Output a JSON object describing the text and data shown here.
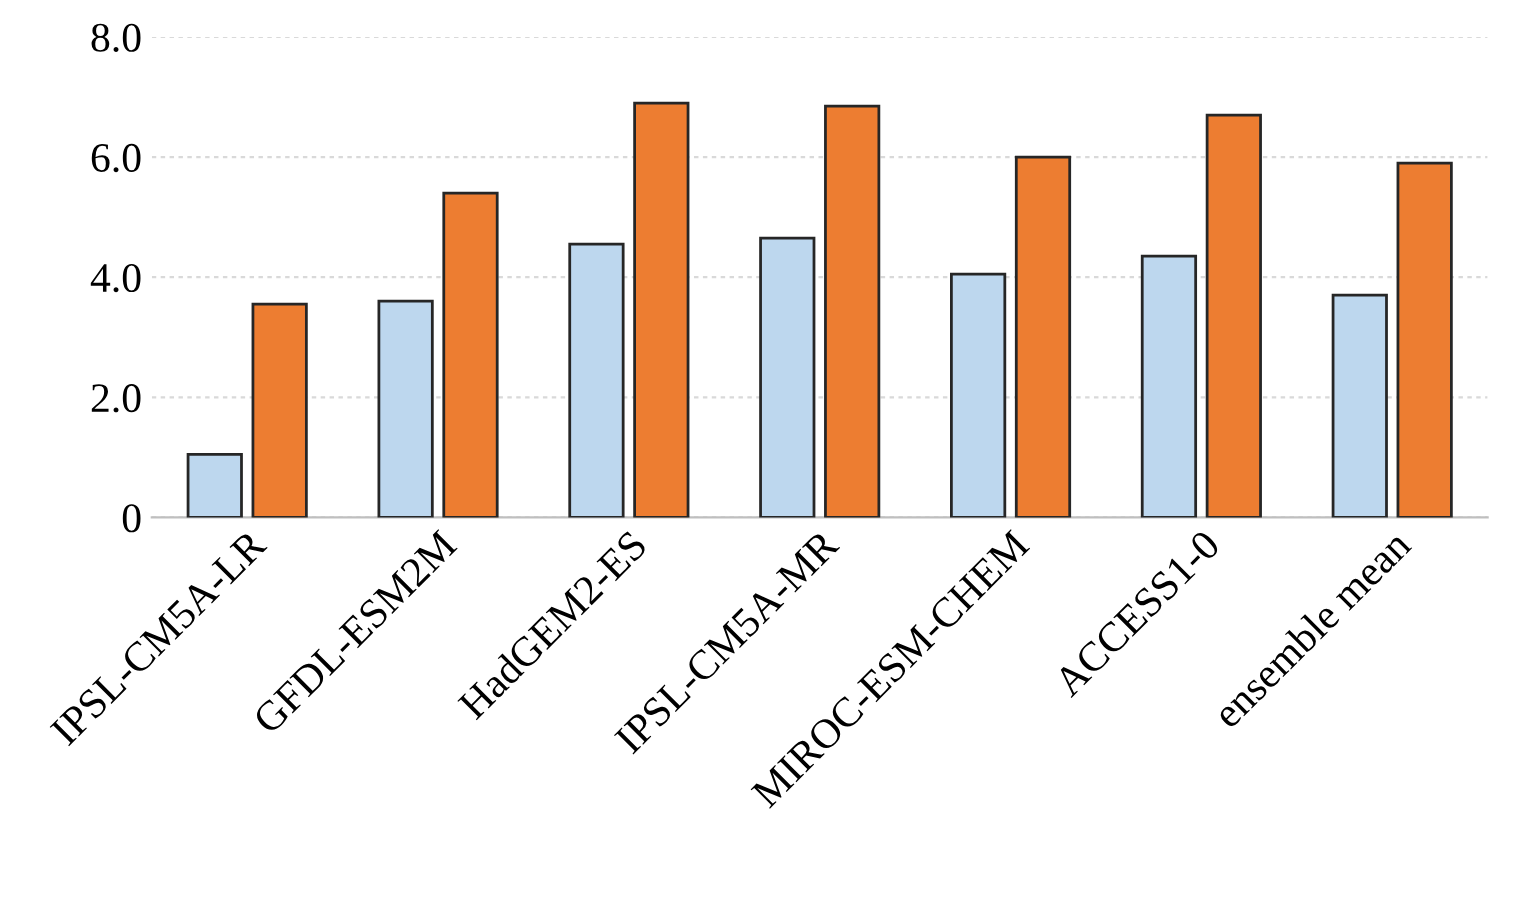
{
  "chart_data": {
    "type": "bar",
    "categories": [
      "IPSL-CM5A-LR",
      "GFDL-ESM2M",
      "HadGEM2-ES",
      "IPSL-CM5A-MR",
      "MIROC-ESM-CHEM",
      "ACCESS1-0",
      "ensemble mean"
    ],
    "series": [
      {
        "color": "#bdd7ee",
        "values": [
          1.05,
          3.6,
          4.55,
          4.65,
          4.05,
          4.35,
          3.7
        ]
      },
      {
        "color": "#ed7d31",
        "values": [
          3.55,
          5.4,
          6.9,
          6.85,
          6.0,
          6.7,
          5.9
        ]
      }
    ],
    "ylim": [
      0,
      8
    ],
    "yticks": [
      {
        "value": 0,
        "label": "0"
      },
      {
        "value": 2,
        "label": "2.0"
      },
      {
        "value": 4,
        "label": "4.0"
      },
      {
        "value": 6,
        "label": "6.0"
      },
      {
        "value": 8,
        "label": "8.0"
      }
    ],
    "grid": "y"
  }
}
